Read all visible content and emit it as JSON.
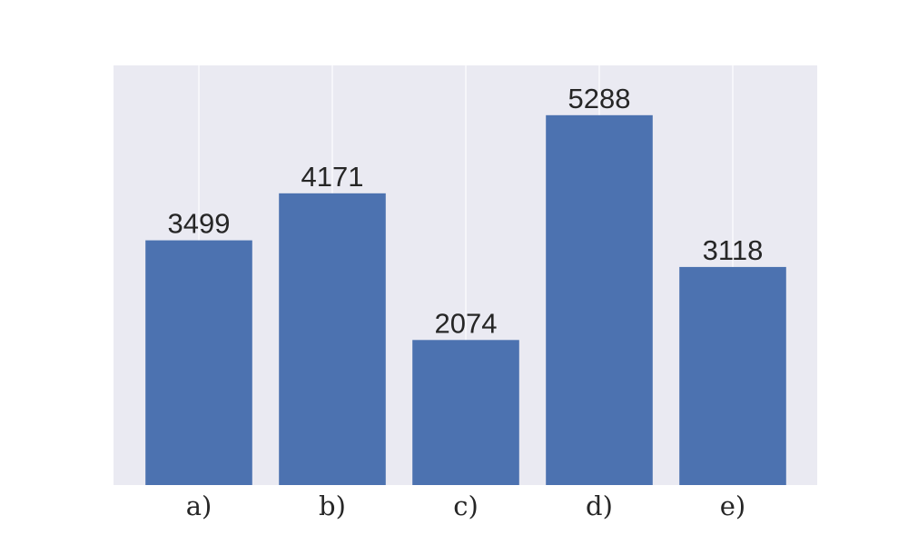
{
  "chart_data": {
    "type": "bar",
    "categories": [
      "a)",
      "b)",
      "c)",
      "d)",
      "e)"
    ],
    "values": [
      3499,
      4171,
      2074,
      5288,
      3118
    ],
    "value_labels": [
      "3499",
      "4171",
      "2074",
      "5288",
      "3118"
    ],
    "title": "",
    "xlabel": "",
    "ylabel": "",
    "ylim": [
      0,
      6000
    ],
    "grid": "vertical",
    "legend": "none"
  },
  "colors": {
    "background": "#ffffff",
    "plot_background": "#eaeaf2",
    "bar": "#4c72b0",
    "grid": "#ffffff",
    "text": "#262626"
  }
}
